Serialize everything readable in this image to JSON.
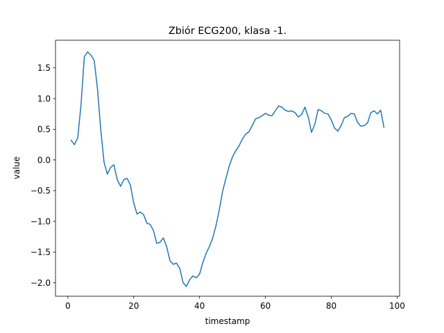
{
  "chart_data": {
    "type": "line",
    "title": "Zbiór ECG200, klasa -1.",
    "xlabel": "timestamp",
    "ylabel": "value",
    "xlim": [
      -3.75,
      100.75
    ],
    "ylim": [
      -2.22,
      1.95
    ],
    "xticks": [
      0,
      20,
      40,
      60,
      80,
      100
    ],
    "yticks": [
      -2.0,
      -1.5,
      -1.0,
      -0.5,
      0.0,
      0.5,
      1.0,
      1.5
    ],
    "xtick_labels": [
      "0",
      "20",
      "40",
      "60",
      "80",
      "100"
    ],
    "ytick_labels": [
      "−2.0",
      "−1.5",
      "−1.0",
      "−0.5",
      "0.0",
      "0.5",
      "1.0",
      "1.5"
    ],
    "grid": false,
    "series": [
      {
        "color": "#1f77b4",
        "x": [
          1,
          2,
          3,
          4,
          5,
          6,
          7,
          8,
          9,
          10,
          11,
          12,
          13,
          14,
          15,
          16,
          17,
          18,
          19,
          20,
          21,
          22,
          23,
          24,
          25,
          26,
          27,
          28,
          29,
          30,
          31,
          32,
          33,
          34,
          35,
          36,
          37,
          38,
          39,
          40,
          41,
          42,
          43,
          44,
          45,
          46,
          47,
          48,
          49,
          50,
          51,
          52,
          53,
          54,
          55,
          56,
          57,
          58,
          59,
          60,
          61,
          62,
          63,
          64,
          65,
          66,
          67,
          68,
          69,
          70,
          71,
          72,
          73,
          74,
          75,
          76,
          77,
          78,
          79,
          80,
          81,
          82,
          83,
          84,
          85,
          86,
          87,
          88,
          89,
          90,
          91,
          92,
          93,
          94,
          95,
          96
        ],
        "y": [
          0.32,
          0.25,
          0.36,
          0.9,
          1.68,
          1.76,
          1.71,
          1.62,
          1.16,
          0.49,
          -0.04,
          -0.23,
          -0.12,
          -0.08,
          -0.32,
          -0.43,
          -0.32,
          -0.3,
          -0.41,
          -0.7,
          -0.88,
          -0.85,
          -0.89,
          -1.03,
          -1.05,
          -1.15,
          -1.36,
          -1.34,
          -1.27,
          -1.41,
          -1.64,
          -1.7,
          -1.68,
          -1.77,
          -2.0,
          -2.06,
          -1.95,
          -1.89,
          -1.92,
          -1.86,
          -1.67,
          -1.52,
          -1.41,
          -1.27,
          -1.07,
          -0.81,
          -0.51,
          -0.3,
          -0.1,
          0.05,
          0.15,
          0.23,
          0.34,
          0.42,
          0.46,
          0.56,
          0.67,
          0.69,
          0.72,
          0.76,
          0.73,
          0.72,
          0.8,
          0.88,
          0.86,
          0.81,
          0.79,
          0.8,
          0.77,
          0.7,
          0.74,
          0.86,
          0.7,
          0.45,
          0.58,
          0.82,
          0.8,
          0.76,
          0.75,
          0.65,
          0.52,
          0.47,
          0.56,
          0.69,
          0.71,
          0.76,
          0.75,
          0.61,
          0.55,
          0.56,
          0.6,
          0.77,
          0.8,
          0.75,
          0.81,
          0.53
        ]
      }
    ]
  }
}
